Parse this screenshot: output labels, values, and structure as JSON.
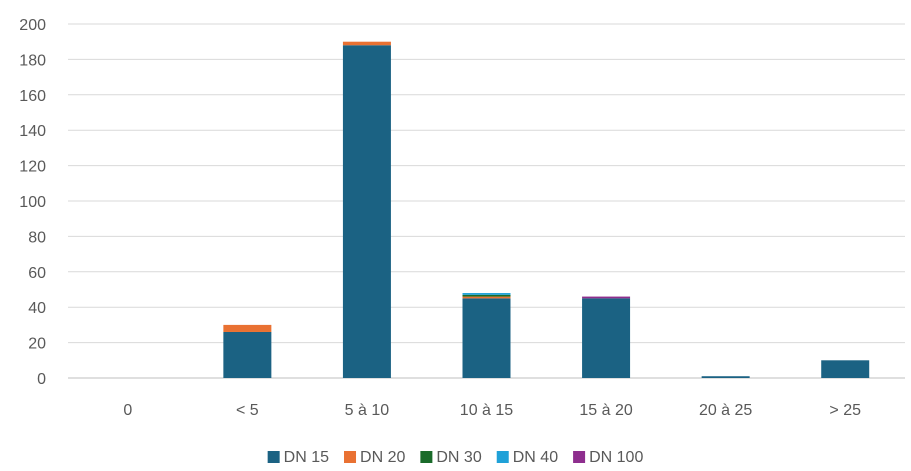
{
  "chart_data": {
    "type": "bar",
    "stacked": true,
    "title": "",
    "xlabel": "",
    "ylabel": "",
    "ylim": [
      0,
      200
    ],
    "yticks": [
      0,
      20,
      40,
      60,
      80,
      100,
      120,
      140,
      160,
      180,
      200
    ],
    "grid": true,
    "legend_position": "bottom",
    "categories": [
      "0",
      "< 5",
      "5 à 10",
      "10 à 15",
      "15 à 20",
      "20 à 25",
      "> 25"
    ],
    "series": [
      {
        "name": "DN 15",
        "color": "#1b6283",
        "values": [
          0,
          26,
          188,
          45,
          45,
          1,
          10
        ]
      },
      {
        "name": "DN 20",
        "color": "#e97132",
        "values": [
          0,
          4,
          2,
          1,
          0,
          0,
          0
        ]
      },
      {
        "name": "DN 30",
        "color": "#1a6b2a",
        "values": [
          0,
          0,
          0,
          1,
          0,
          0,
          0
        ]
      },
      {
        "name": "DN 40",
        "color": "#1fa1d8",
        "values": [
          0,
          0,
          0,
          1,
          0,
          0,
          0
        ]
      },
      {
        "name": "DN 100",
        "color": "#8e2e8e",
        "values": [
          0,
          0,
          0,
          0,
          1,
          0,
          0
        ]
      }
    ]
  }
}
